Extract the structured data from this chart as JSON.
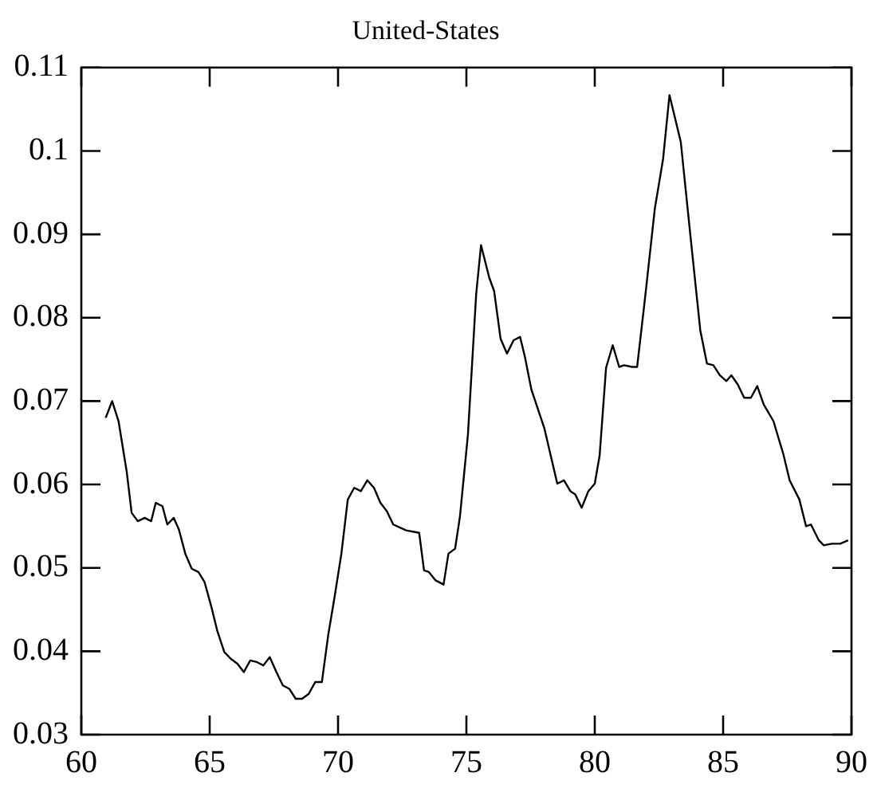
{
  "chart_data": {
    "type": "line",
    "title": "United-States",
    "x": [
      60.95,
      61.2,
      61.45,
      61.77,
      61.96,
      62.2,
      62.47,
      62.72,
      62.9,
      63.16,
      63.35,
      63.6,
      63.8,
      64.05,
      64.3,
      64.56,
      64.8,
      65.06,
      65.3,
      65.57,
      65.82,
      66.08,
      66.33,
      66.58,
      66.84,
      67.09,
      67.34,
      67.6,
      67.85,
      68.1,
      68.35,
      68.6,
      68.86,
      69.11,
      69.37,
      69.62,
      69.87,
      70.13,
      70.38,
      70.63,
      70.89,
      71.14,
      71.4,
      71.65,
      71.9,
      72.15,
      72.65,
      73.16,
      73.35,
      73.54,
      73.8,
      74.11,
      74.3,
      74.56,
      74.75,
      75.06,
      75.38,
      75.57,
      75.89,
      76.08,
      76.33,
      76.58,
      76.84,
      77.09,
      77.28,
      77.53,
      78.04,
      78.54,
      78.8,
      79.05,
      79.24,
      79.49,
      79.75,
      80.0,
      80.19,
      80.44,
      80.7,
      80.95,
      81.14,
      81.46,
      81.65,
      81.96,
      82.34,
      82.66,
      82.91,
      83.35,
      83.73,
      84.11,
      84.37,
      84.62,
      84.87,
      85.13,
      85.32,
      85.57,
      85.82,
      86.08,
      86.33,
      86.58,
      86.96,
      87.34,
      87.59,
      87.97,
      88.23,
      88.42,
      88.73,
      88.92,
      89.24,
      89.56,
      89.87
    ],
    "series": [
      {
        "color": "#000000",
        "values": [
          0.068,
          0.07,
          0.0676,
          0.0615,
          0.0566,
          0.0556,
          0.056,
          0.0556,
          0.0578,
          0.0574,
          0.0552,
          0.056,
          0.0546,
          0.0517,
          0.0499,
          0.0495,
          0.0483,
          0.0454,
          0.0424,
          0.0399,
          0.0391,
          0.0385,
          0.0375,
          0.0389,
          0.0387,
          0.0383,
          0.0393,
          0.0375,
          0.0359,
          0.0355,
          0.0343,
          0.0343,
          0.0349,
          0.0363,
          0.0363,
          0.042,
          0.0466,
          0.0517,
          0.0582,
          0.0596,
          0.0592,
          0.0605,
          0.0596,
          0.0578,
          0.0568,
          0.0552,
          0.0545,
          0.0542,
          0.0497,
          0.0495,
          0.0485,
          0.048,
          0.0517,
          0.0523,
          0.0562,
          0.066,
          0.0828,
          0.0887,
          0.0848,
          0.0832,
          0.0775,
          0.0757,
          0.0773,
          0.0777,
          0.0753,
          0.0714,
          0.0667,
          0.0601,
          0.0605,
          0.0592,
          0.0588,
          0.0572,
          0.0592,
          0.0601,
          0.0635,
          0.074,
          0.0767,
          0.0741,
          0.0743,
          0.0741,
          0.0741,
          0.0824,
          0.0931,
          0.099,
          0.1067,
          0.1011,
          0.0897,
          0.0785,
          0.0745,
          0.0743,
          0.0731,
          0.0724,
          0.0731,
          0.072,
          0.0704,
          0.0704,
          0.0718,
          0.0696,
          0.0676,
          0.0637,
          0.0605,
          0.0582,
          0.055,
          0.0552,
          0.0533,
          0.0527,
          0.0529,
          0.0529,
          0.0533
        ]
      }
    ],
    "xlim": [
      60,
      90
    ],
    "xticks": [
      60,
      65,
      70,
      75,
      80,
      85,
      90
    ],
    "ylim": [
      0.03,
      0.11
    ],
    "yticks": [
      0.03,
      0.04,
      0.05,
      0.06,
      0.07,
      0.08,
      0.09,
      0.1,
      0.11
    ],
    "grid": false,
    "legend": false,
    "marker": "none",
    "line_style": "solid"
  }
}
